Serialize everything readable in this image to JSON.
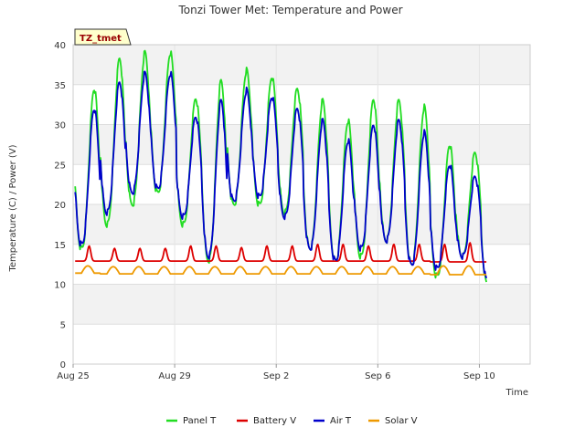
{
  "chart_data": {
    "type": "line",
    "title": "Tonzi Tower Met: Temperature and Power",
    "xlabel": "Time",
    "ylabel": "Temperature (C) / Power (V)",
    "site_tag": "TZ_tmet",
    "ylim": [
      0,
      40
    ],
    "yticks": [
      0,
      5,
      10,
      15,
      20,
      25,
      30,
      35,
      40
    ],
    "xlim": [
      "2023-08-25",
      "2023-09-12"
    ],
    "xticks": [
      {
        "date": "2023-08-25",
        "label": "Aug 25"
      },
      {
        "date": "2023-08-29",
        "label": "Aug 29"
      },
      {
        "date": "2023-09-02",
        "label": "Sep 2"
      },
      {
        "date": "2023-09-06",
        "label": "Sep 6"
      },
      {
        "date": "2023-09-10",
        "label": "Sep 10"
      }
    ],
    "grid": true,
    "legend_position": "bottom",
    "series": [
      {
        "name": "Panel T",
        "color": "#22dd22",
        "daily_min": [
          14.5,
          17.5,
          20.0,
          21.5,
          17.5,
          13.0,
          20.0,
          20.0,
          19.0,
          14.5,
          13.0,
          13.5,
          15.5,
          12.5,
          11.0,
          13.5,
          10.0
        ],
        "daily_max": [
          34.5,
          38.3,
          39.0,
          39.0,
          33.3,
          35.5,
          36.8,
          36.0,
          34.5,
          33.0,
          30.5,
          33.2,
          33.0,
          32.2,
          27.5,
          26.5,
          25.0
        ]
      },
      {
        "name": "Battery V",
        "color": "#dd0000",
        "daily_min": [
          12.9,
          12.9,
          12.9,
          12.9,
          12.9,
          12.9,
          12.9,
          12.9,
          12.9,
          12.9,
          12.9,
          12.9,
          12.9,
          12.9,
          12.8,
          12.8,
          12.8
        ],
        "daily_max": [
          14.8,
          14.5,
          14.5,
          14.5,
          14.8,
          14.8,
          14.6,
          14.8,
          14.8,
          15.0,
          15.0,
          14.8,
          15.0,
          15.0,
          15.0,
          15.2,
          15.3
        ]
      },
      {
        "name": "Air T",
        "color": "#0000cc",
        "daily_min": [
          15.0,
          19.0,
          21.5,
          22.0,
          18.5,
          13.5,
          20.5,
          21.0,
          18.5,
          14.5,
          13.0,
          14.5,
          15.5,
          12.5,
          12.0,
          13.5,
          10.5
        ],
        "daily_max": [
          32.0,
          35.3,
          36.4,
          36.4,
          31.0,
          33.0,
          34.3,
          33.5,
          32.0,
          30.5,
          28.0,
          30.0,
          30.5,
          29.0,
          25.0,
          23.5,
          22.8
        ]
      },
      {
        "name": "Solar V",
        "color": "#ee9900",
        "daily_min": [
          11.4,
          11.3,
          11.3,
          11.3,
          11.3,
          11.3,
          11.3,
          11.3,
          11.3,
          11.3,
          11.3,
          11.3,
          11.3,
          11.3,
          11.2,
          11.2,
          11.2
        ],
        "daily_max": [
          12.3,
          12.2,
          12.2,
          12.2,
          12.2,
          12.2,
          12.2,
          12.2,
          12.2,
          12.2,
          12.2,
          12.2,
          12.2,
          12.2,
          12.3,
          12.3,
          12.4
        ]
      }
    ]
  }
}
